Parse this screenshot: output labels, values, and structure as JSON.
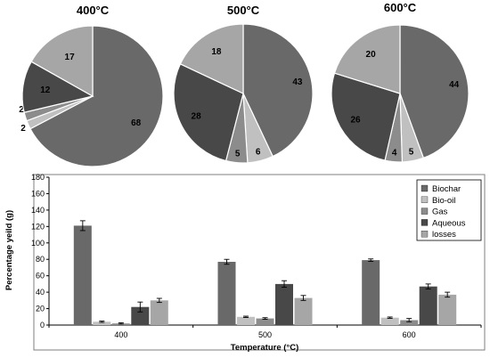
{
  "series_colors": {
    "Biochar": "#696969",
    "Bio-oil": "#c0c0c0",
    "Gas": "#8c8c8c",
    "Aqueous": "#484848",
    "losses": "#a6a6a6"
  },
  "chart_data": [
    {
      "type": "pie",
      "title": "400°C",
      "slices": [
        {
          "name": "Biochar",
          "value": 68
        },
        {
          "name": "Bio-oil",
          "value": 2
        },
        {
          "name": "Gas",
          "value": 2
        },
        {
          "name": "Aqueous",
          "value": 12
        },
        {
          "name": "losses",
          "value": 17
        }
      ]
    },
    {
      "type": "pie",
      "title": "500°C",
      "slices": [
        {
          "name": "Biochar",
          "value": 43
        },
        {
          "name": "Bio-oil",
          "value": 6
        },
        {
          "name": "Gas",
          "value": 5
        },
        {
          "name": "Aqueous",
          "value": 28
        },
        {
          "name": "losses",
          "value": 18
        }
      ]
    },
    {
      "type": "pie",
      "title": "600°C",
      "slices": [
        {
          "name": "Biochar",
          "value": 44
        },
        {
          "name": "Bio-oil",
          "value": 5
        },
        {
          "name": "Gas",
          "value": 4
        },
        {
          "name": "Aqueous",
          "value": 26
        },
        {
          "name": "losses",
          "value": 20
        }
      ]
    },
    {
      "type": "bar",
      "xlabel": "Temperature (°C)",
      "ylabel": "Percentage yeild (g)",
      "ylim": [
        0,
        180
      ],
      "yticks": [
        0,
        20,
        40,
        60,
        80,
        100,
        120,
        140,
        160,
        180
      ],
      "categories": [
        "400",
        "500",
        "600"
      ],
      "legend_position": "top-right",
      "series": [
        {
          "name": "Biochar",
          "values": [
            121,
            77,
            79
          ],
          "errors": [
            6,
            3,
            1.5
          ]
        },
        {
          "name": "Bio-oil",
          "values": [
            4,
            10,
            9
          ],
          "errors": [
            0.8,
            0.8,
            0.8
          ]
        },
        {
          "name": "Gas",
          "values": [
            2,
            8,
            6
          ],
          "errors": [
            0.8,
            1,
            2
          ]
        },
        {
          "name": "Aqueous",
          "values": [
            22,
            50,
            47
          ],
          "errors": [
            6,
            4,
            3
          ]
        },
        {
          "name": "losses",
          "values": [
            30,
            33,
            37
          ],
          "errors": [
            2.5,
            3,
            3
          ]
        }
      ]
    }
  ]
}
